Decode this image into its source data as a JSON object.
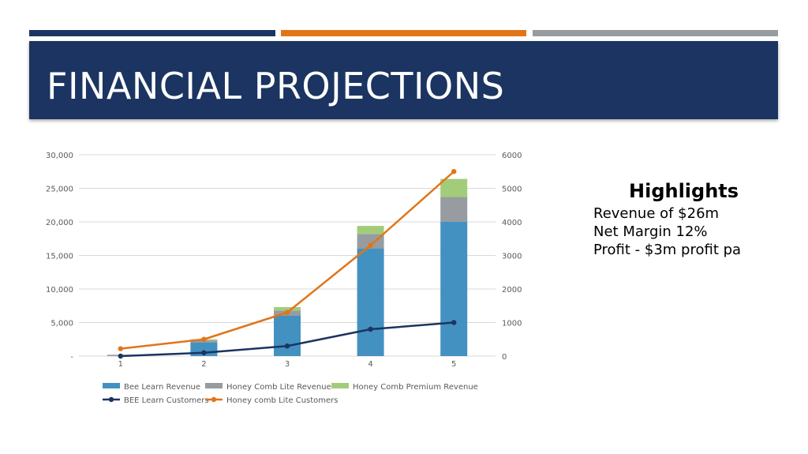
{
  "slide": {
    "title": "FINANCIAL PROJECTIONS",
    "accent_colors": [
      "#1b3461",
      "#e17519",
      "#969ca0"
    ]
  },
  "highlights": {
    "heading": "Highlights",
    "lines": [
      "Revenue of $26m",
      "Net Margin 12%",
      "Profit - $3m profit pa"
    ]
  },
  "chart_data": {
    "type": "bar",
    "combo": "stacked bar + line (secondary axis)",
    "categories": [
      "1",
      "2",
      "3",
      "4",
      "5"
    ],
    "bar_series": [
      {
        "name": "Bee Learn Revenue",
        "color": "#4391c1",
        "values": [
          0,
          2000,
          6000,
          16000,
          20000
        ]
      },
      {
        "name": "Honey Comb Lite Revenue",
        "color": "#969ca0",
        "values": [
          200,
          300,
          800,
          2200,
          3700
        ]
      },
      {
        "name": "Honey Comb Premium Revenue",
        "color": "#a3cc7a",
        "values": [
          0,
          200,
          500,
          1200,
          2700
        ]
      }
    ],
    "line_series": [
      {
        "name": "BEE Learn Customers",
        "color": "#1b3461",
        "values": [
          0,
          100,
          300,
          800,
          1000
        ]
      },
      {
        "name": "Honey comb Lite Customers",
        "color": "#e17519",
        "values": [
          220,
          500,
          1300,
          3300,
          5500
        ]
      }
    ],
    "y_left": {
      "ylim": [
        0,
        30000
      ],
      "tick_labels": [
        "-",
        "5,000",
        "10,000",
        "15,000",
        "20,000",
        "25,000",
        "30,000"
      ]
    },
    "y_right": {
      "ylim": [
        0,
        6000
      ],
      "tick_labels": [
        "0",
        "1000",
        "2000",
        "3000",
        "4000",
        "5000",
        "6000"
      ]
    },
    "grid": true,
    "legend": "bottom"
  }
}
